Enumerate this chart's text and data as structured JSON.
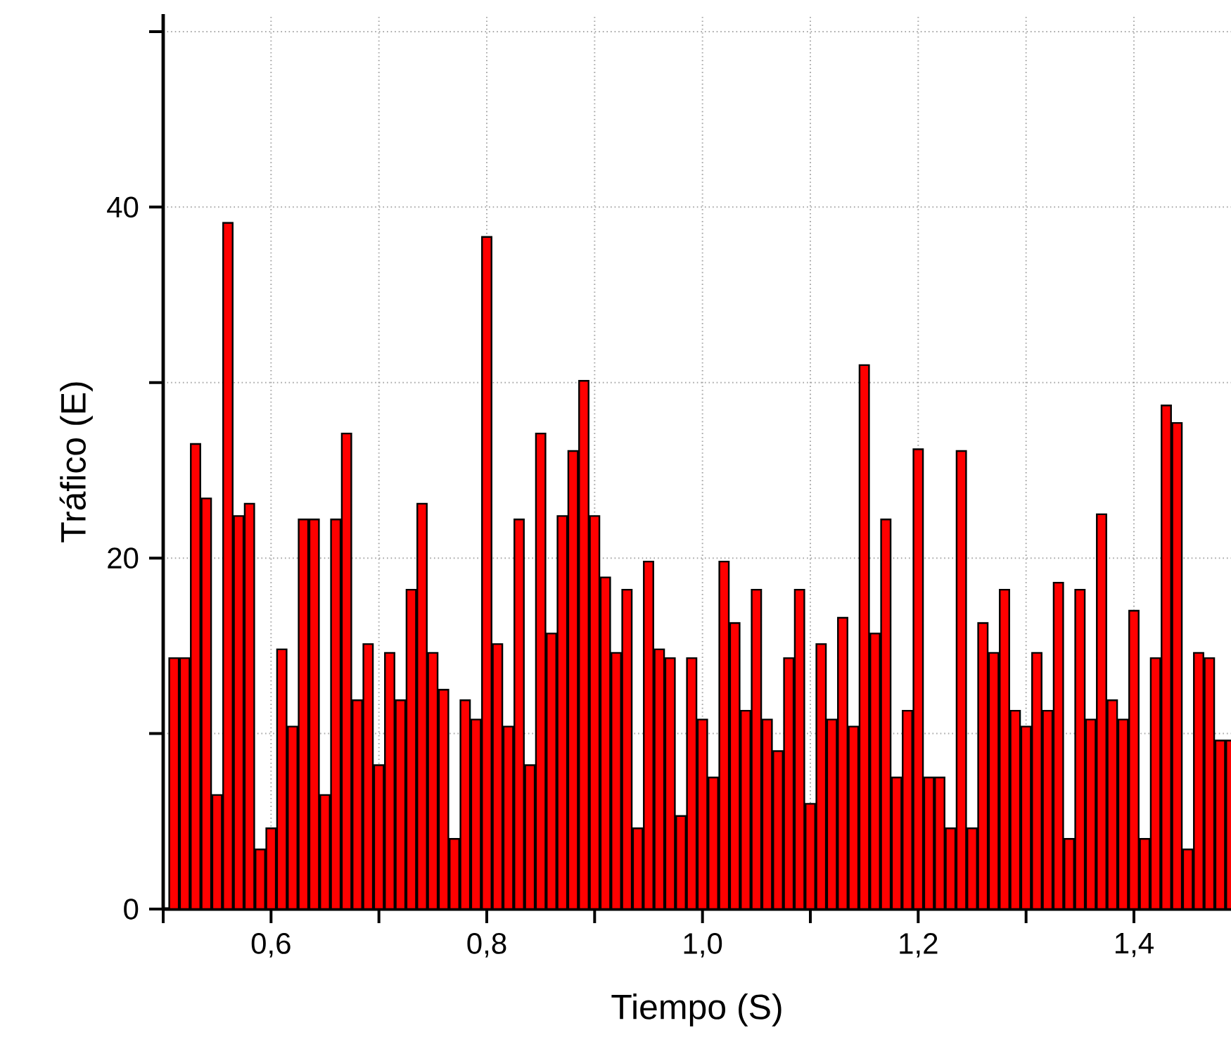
{
  "chart_data": {
    "type": "bar",
    "xlabel": "Tiempo (S)",
    "ylabel": "Tráfico (E)",
    "x": [
      0.51,
      0.52,
      0.53,
      0.54,
      0.55,
      0.56,
      0.57,
      0.58,
      0.59,
      0.6,
      0.61,
      0.62,
      0.63,
      0.64,
      0.65,
      0.66,
      0.67,
      0.68,
      0.69,
      0.7,
      0.71,
      0.72,
      0.73,
      0.74,
      0.75,
      0.76,
      0.77,
      0.78,
      0.79,
      0.8,
      0.81,
      0.82,
      0.83,
      0.84,
      0.85,
      0.86,
      0.87,
      0.88,
      0.89,
      0.9,
      0.91,
      0.92,
      0.93,
      0.94,
      0.95,
      0.96,
      0.97,
      0.98,
      0.99,
      1.0,
      1.01,
      1.02,
      1.03,
      1.04,
      1.05,
      1.06,
      1.07,
      1.08,
      1.09,
      1.1,
      1.11,
      1.12,
      1.13,
      1.14,
      1.15,
      1.16,
      1.17,
      1.18,
      1.19,
      1.2,
      1.21,
      1.22,
      1.23,
      1.24,
      1.25,
      1.26,
      1.27,
      1.28,
      1.29,
      1.3,
      1.31,
      1.32,
      1.33,
      1.34,
      1.35,
      1.36,
      1.37,
      1.38,
      1.39,
      1.4,
      1.41,
      1.42,
      1.43,
      1.44,
      1.45,
      1.46,
      1.47,
      1.48,
      1.49
    ],
    "values": [
      14.3,
      14.3,
      26.5,
      23.4,
      6.5,
      39.1,
      22.4,
      23.1,
      3.4,
      4.6,
      14.8,
      10.4,
      22.2,
      22.2,
      6.5,
      22.2,
      27.1,
      11.9,
      15.1,
      8.2,
      14.6,
      11.9,
      18.2,
      23.1,
      14.6,
      12.5,
      4.0,
      11.9,
      10.8,
      38.3,
      15.1,
      10.4,
      22.2,
      8.2,
      27.1,
      15.7,
      22.4,
      26.1,
      30.1,
      22.4,
      18.9,
      14.6,
      18.2,
      4.6,
      19.8,
      14.8,
      14.3,
      5.3,
      14.3,
      10.8,
      7.5,
      19.8,
      16.3,
      11.3,
      18.2,
      10.8,
      9.0,
      14.3,
      18.2,
      6.0,
      15.1,
      10.8,
      16.6,
      10.4,
      31.0,
      15.7,
      22.2,
      7.5,
      11.3,
      26.2,
      7.5,
      7.5,
      4.6,
      26.1,
      4.6,
      16.3,
      14.6,
      18.2,
      11.3,
      10.4,
      14.6,
      11.3,
      18.6,
      4.0,
      18.2,
      10.8,
      22.5,
      11.9,
      10.8,
      17.0,
      4.0,
      14.3,
      28.7,
      27.7,
      3.4,
      14.6,
      14.3,
      9.6,
      9.6
    ],
    "color": "#ff0000",
    "xlim": [
      0.5,
      1.49
    ],
    "xticks": [
      {
        "value": 0.5,
        "label": null
      },
      {
        "value": 0.6,
        "label": "0,6"
      },
      {
        "value": 0.7,
        "label": null
      },
      {
        "value": 0.8,
        "label": "0,8"
      },
      {
        "value": 0.9,
        "label": null
      },
      {
        "value": 1.0,
        "label": "1,0"
      },
      {
        "value": 1.1,
        "label": null
      },
      {
        "value": 1.2,
        "label": "1,2"
      },
      {
        "value": 1.3,
        "label": null
      },
      {
        "value": 1.4,
        "label": "1,4"
      }
    ],
    "ylim": [
      0,
      51
    ],
    "yticks": [
      0,
      {
        "value": 10,
        "label": null
      },
      20,
      {
        "value": 30,
        "label": null
      },
      40,
      {
        "value": 50,
        "label": null
      }
    ],
    "grid": true
  }
}
